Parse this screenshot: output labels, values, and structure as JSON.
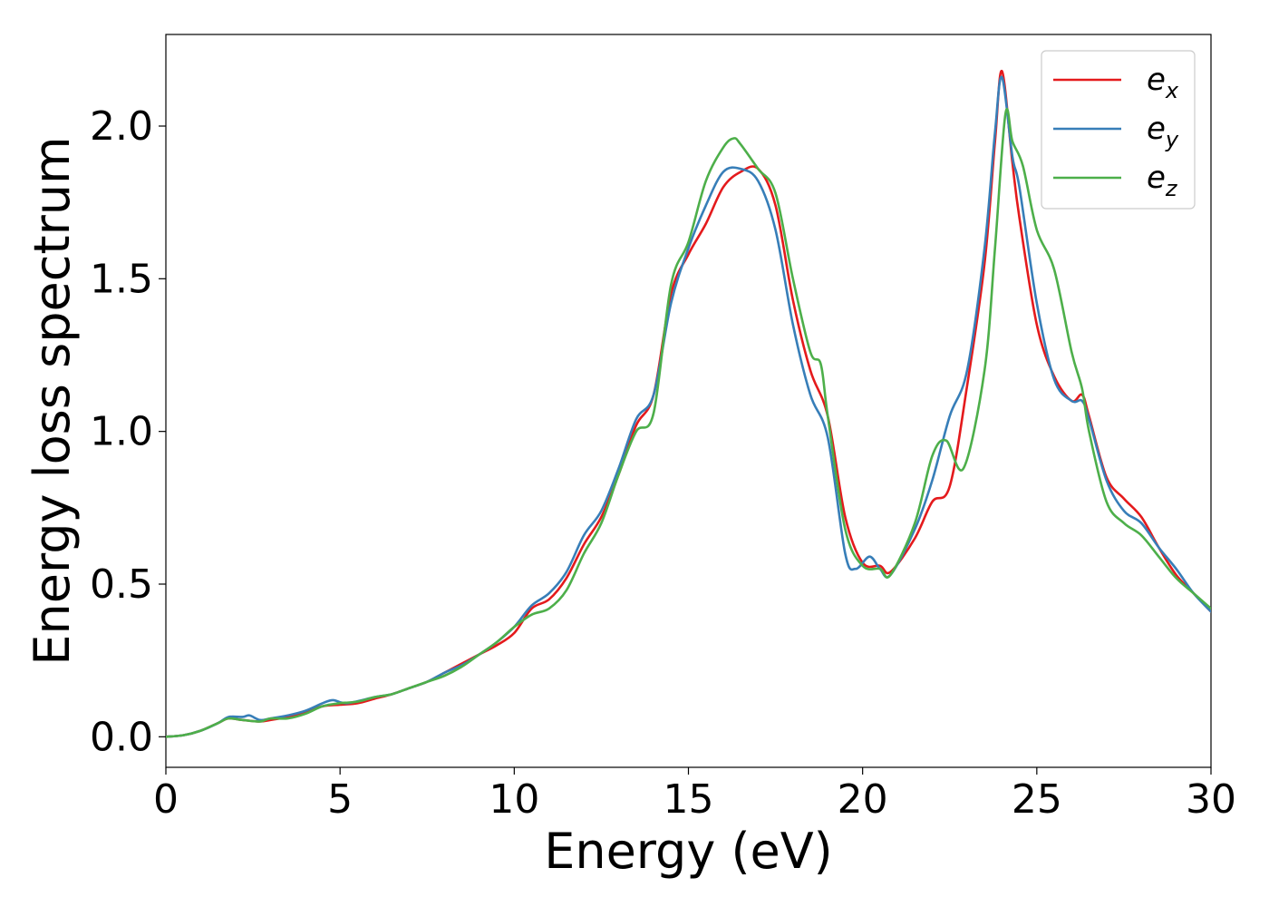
{
  "chart_data": {
    "type": "line",
    "title": "",
    "xlabel": "Energy (eV)",
    "ylabel": "Energy loss spectrum",
    "xlim": [
      0,
      30
    ],
    "ylim": [
      -0.1,
      2.3
    ],
    "xticks": [
      0,
      5,
      10,
      15,
      20,
      25,
      30
    ],
    "xtick_labels": [
      "0",
      "5",
      "10",
      "15",
      "20",
      "25",
      "30"
    ],
    "yticks": [
      0.0,
      0.5,
      1.0,
      1.5,
      2.0
    ],
    "ytick_labels": [
      "0.0",
      "0.5",
      "1.0",
      "1.5",
      "2.0"
    ],
    "grid": false,
    "legend_position": "top-right",
    "series": [
      {
        "name": "e_x",
        "label_main": "e",
        "label_sub": "x",
        "color": "#e41a1c",
        "x": [
          0,
          0.5,
          1.0,
          1.5,
          1.8,
          2.2,
          2.7,
          3.0,
          3.5,
          4.0,
          4.5,
          5.0,
          5.5,
          6.0,
          6.5,
          7.0,
          7.5,
          8.0,
          8.5,
          9.0,
          9.5,
          10.0,
          10.5,
          11.0,
          11.5,
          12.0,
          12.5,
          13.0,
          13.5,
          14.0,
          14.5,
          15.0,
          15.5,
          16.0,
          16.5,
          17.0,
          17.5,
          18.0,
          18.5,
          19.0,
          19.5,
          20.0,
          20.5,
          20.8,
          21.5,
          22.0,
          22.5,
          23.0,
          23.5,
          23.8,
          24.0,
          24.3,
          24.5,
          25.0,
          25.5,
          26.0,
          26.3,
          26.5,
          27.0,
          27.5,
          28.0,
          28.5,
          29.0,
          29.5,
          30.0
        ],
        "y": [
          0.0,
          0.005,
          0.02,
          0.045,
          0.06,
          0.055,
          0.05,
          0.055,
          0.065,
          0.08,
          0.1,
          0.105,
          0.11,
          0.125,
          0.14,
          0.16,
          0.18,
          0.21,
          0.24,
          0.27,
          0.3,
          0.34,
          0.42,
          0.45,
          0.52,
          0.63,
          0.72,
          0.86,
          1.02,
          1.12,
          1.45,
          1.58,
          1.68,
          1.8,
          1.85,
          1.86,
          1.74,
          1.43,
          1.2,
          1.05,
          0.72,
          0.57,
          0.56,
          0.54,
          0.65,
          0.77,
          0.82,
          1.15,
          1.55,
          1.95,
          2.18,
          1.88,
          1.7,
          1.35,
          1.18,
          1.1,
          1.12,
          1.05,
          0.85,
          0.78,
          0.72,
          0.62,
          0.53,
          0.47,
          0.41
        ]
      },
      {
        "name": "e_y",
        "label_main": "e",
        "label_sub": "y",
        "color": "#377eb8",
        "x": [
          0,
          0.5,
          1.0,
          1.5,
          1.8,
          2.2,
          2.4,
          2.7,
          3.0,
          3.5,
          4.0,
          4.5,
          4.8,
          5.2,
          6.0,
          6.5,
          7.0,
          7.5,
          8.0,
          8.5,
          9.0,
          9.5,
          10.0,
          10.5,
          11.0,
          11.5,
          12.0,
          12.5,
          13.0,
          13.5,
          14.0,
          14.5,
          15.0,
          15.5,
          16.0,
          16.5,
          17.0,
          17.5,
          18.0,
          18.5,
          19.0,
          19.5,
          19.8,
          20.2,
          20.5,
          20.8,
          21.5,
          22.0,
          22.5,
          23.0,
          23.5,
          23.8,
          24.0,
          24.3,
          24.5,
          25.0,
          25.5,
          26.0,
          26.3,
          26.5,
          27.0,
          27.5,
          28.0,
          28.5,
          29.0,
          29.5,
          30.0
        ],
        "y": [
          0.0,
          0.005,
          0.02,
          0.045,
          0.065,
          0.065,
          0.07,
          0.055,
          0.06,
          0.07,
          0.085,
          0.11,
          0.12,
          0.11,
          0.13,
          0.14,
          0.16,
          0.18,
          0.21,
          0.235,
          0.27,
          0.31,
          0.36,
          0.43,
          0.47,
          0.54,
          0.66,
          0.74,
          0.88,
          1.04,
          1.12,
          1.42,
          1.6,
          1.74,
          1.85,
          1.86,
          1.82,
          1.66,
          1.35,
          1.12,
          0.98,
          0.6,
          0.55,
          0.59,
          0.55,
          0.53,
          0.68,
          0.84,
          1.05,
          1.2,
          1.6,
          1.98,
          2.16,
          1.9,
          1.8,
          1.42,
          1.17,
          1.1,
          1.1,
          1.04,
          0.84,
          0.74,
          0.7,
          0.62,
          0.55,
          0.47,
          0.41
        ]
      },
      {
        "name": "e_z",
        "label_main": "e",
        "label_sub": "z",
        "color": "#4daf4a",
        "x": [
          0,
          0.5,
          1.0,
          1.5,
          1.8,
          2.2,
          2.7,
          3.0,
          3.5,
          4.0,
          4.5,
          5.0,
          5.5,
          6.0,
          6.5,
          7.0,
          7.5,
          8.0,
          8.5,
          9.0,
          9.5,
          10.0,
          10.5,
          11.0,
          11.5,
          12.0,
          12.5,
          13.0,
          13.5,
          14.0,
          14.5,
          15.0,
          15.5,
          16.0,
          16.3,
          16.5,
          17.0,
          17.5,
          18.0,
          18.5,
          18.8,
          19.0,
          19.5,
          20.0,
          20.5,
          20.8,
          21.5,
          22.0,
          22.4,
          22.9,
          23.5,
          23.8,
          24.1,
          24.3,
          24.6,
          25.0,
          25.5,
          26.0,
          26.3,
          26.5,
          27.0,
          27.5,
          28.0,
          28.5,
          29.0,
          29.5,
          30.0
        ],
        "y": [
          0.0,
          0.005,
          0.02,
          0.045,
          0.06,
          0.055,
          0.05,
          0.06,
          0.06,
          0.075,
          0.1,
          0.11,
          0.115,
          0.13,
          0.14,
          0.16,
          0.18,
          0.2,
          0.23,
          0.27,
          0.31,
          0.36,
          0.4,
          0.42,
          0.48,
          0.6,
          0.7,
          0.86,
          1.0,
          1.06,
          1.48,
          1.62,
          1.82,
          1.93,
          1.96,
          1.94,
          1.86,
          1.78,
          1.5,
          1.26,
          1.22,
          1.05,
          0.68,
          0.56,
          0.55,
          0.53,
          0.7,
          0.92,
          0.97,
          0.88,
          1.2,
          1.6,
          2.04,
          1.95,
          1.87,
          1.66,
          1.53,
          1.26,
          1.14,
          1.0,
          0.77,
          0.7,
          0.66,
          0.59,
          0.52,
          0.47,
          0.42
        ]
      }
    ]
  }
}
